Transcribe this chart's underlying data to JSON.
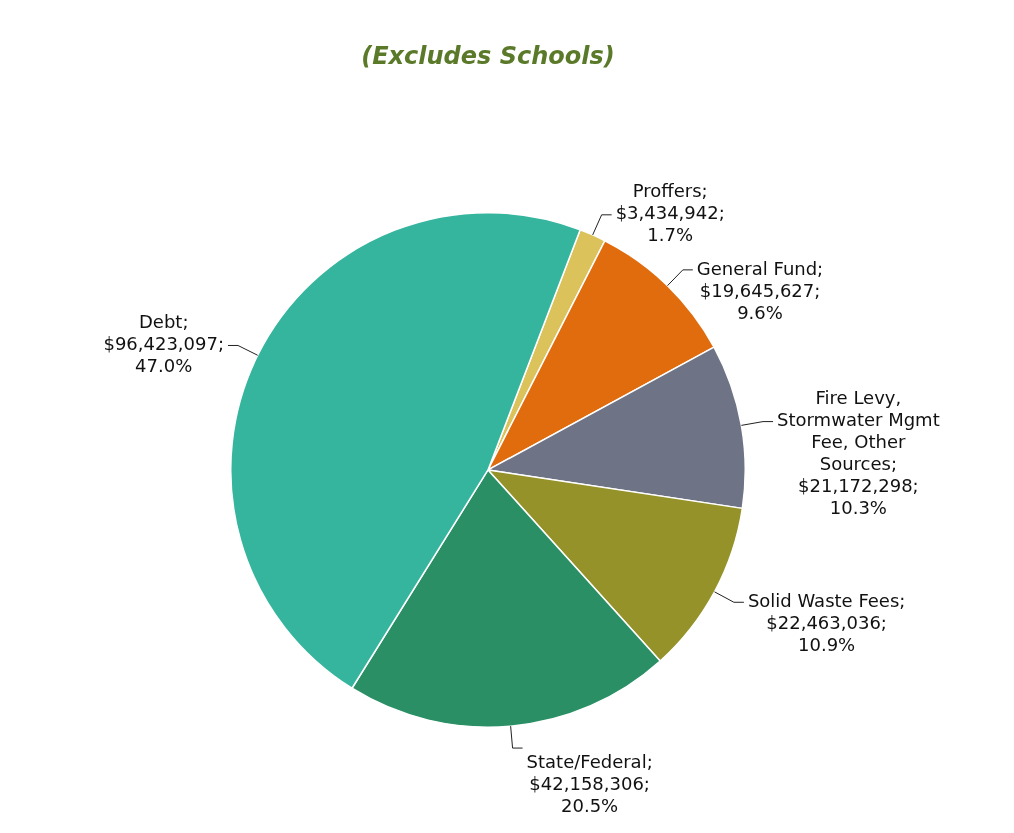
{
  "chart_data": {
    "type": "pie",
    "title": "(Excludes Schools)",
    "categories": [
      "Proffers",
      "General Fund",
      "Fire Levy, Stormwater Mgmt Fee, Other Sources",
      "Solid Waste Fees",
      "State/Federal",
      "Debt"
    ],
    "values": [
      3434942,
      19645627,
      21172298,
      22463036,
      42158306,
      96423097
    ],
    "value_labels": [
      "; $3,434,942; 1.7%",
      "; $19,645,627; 9.6%",
      "; $21,172,298; 10.3%",
      "; $22,463,036; 10.9%",
      "; $42,158,306; 20.5%",
      "; $96,423,097; 47.0%"
    ],
    "colors": [
      "#dcc25a",
      "#e06c0e",
      "#6e7385",
      "#95922a",
      "#2b8f66",
      "#36b59e"
    ],
    "legend": false
  }
}
